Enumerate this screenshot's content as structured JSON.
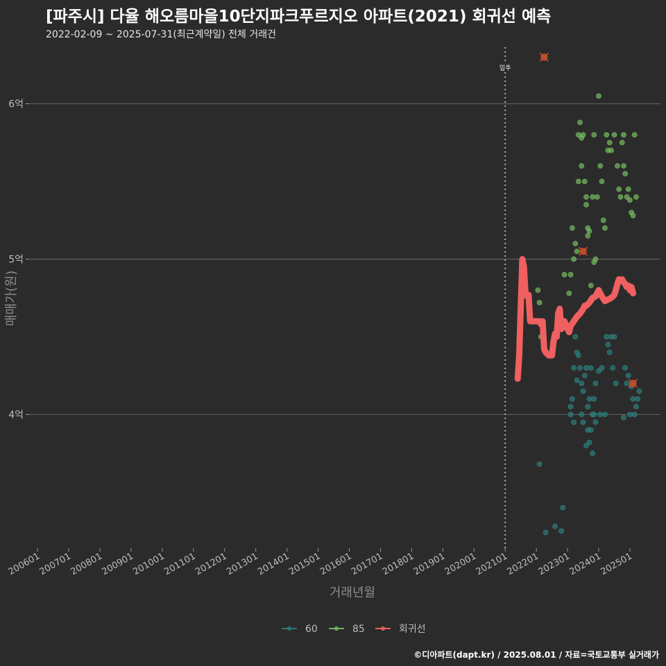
{
  "title": "[파주시] 다율 해오름마을10단지파크푸르지오 아파트(2021) 회귀선 예측",
  "subtitle": "2022-02-09 ~ 2025-07-31(최근계약일) 전체 거래건",
  "caption": "©디아파트(dapt.kr) / 2025.08.01 / 자료=국토교통부 실거래가",
  "colors": {
    "background": "#2b2b2b",
    "grid": "#5e5e5e",
    "series_60": "#2a7a78",
    "series_85": "#6fb45a",
    "regression": "#f06060",
    "highlight": "#d9472b"
  },
  "chart_data": {
    "type": "scatter",
    "xlabel": "거래년월",
    "ylabel": "매매가(원)",
    "x_unit": "decimal_year",
    "y_unit": "억",
    "xlim": [
      2005.73,
      2025.98
    ],
    "ylim": [
      3.14,
      6.4
    ],
    "x_tick_values": [
      2006,
      2007,
      2008,
      2009,
      2010,
      2011,
      2012,
      2013,
      2014,
      2015,
      2016,
      2017,
      2018,
      2019,
      2020,
      2021,
      2022,
      2023,
      2024,
      2025
    ],
    "x_tick_labels": [
      "200601",
      "200701",
      "200801",
      "200901",
      "201001",
      "201101",
      "201201",
      "201301",
      "201401",
      "201501",
      "201601",
      "201701",
      "201801",
      "201901",
      "202001",
      "202101",
      "202201",
      "202301",
      "202401",
      "202501"
    ],
    "y_tick_values": [
      4,
      5,
      6
    ],
    "y_tick_labels": [
      "4억",
      "5억",
      "6억"
    ],
    "move_in_marker": {
      "x": 2021.0,
      "label": "입주"
    },
    "legend": [
      "60",
      "85",
      "회귀선"
    ],
    "series": [
      {
        "name": "60",
        "points": [
          [
            2022.1,
            3.68
          ],
          [
            2022.3,
            3.24
          ],
          [
            2022.6,
            3.28
          ],
          [
            2022.8,
            3.25
          ],
          [
            2022.85,
            3.4
          ],
          [
            2023.1,
            4.0
          ],
          [
            2023.1,
            4.05
          ],
          [
            2023.15,
            4.1
          ],
          [
            2023.2,
            3.95
          ],
          [
            2023.2,
            4.3
          ],
          [
            2023.3,
            4.22
          ],
          [
            2023.3,
            4.4
          ],
          [
            2023.35,
            4.38
          ],
          [
            2023.4,
            4.3
          ],
          [
            2023.45,
            4.0
          ],
          [
            2023.45,
            4.2
          ],
          [
            2023.5,
            4.15
          ],
          [
            2023.55,
            4.25
          ],
          [
            2023.6,
            4.3
          ],
          [
            2023.6,
            3.8
          ],
          [
            2023.65,
            4.05
          ],
          [
            2023.65,
            3.9
          ],
          [
            2023.7,
            4.1
          ],
          [
            2023.7,
            3.82
          ],
          [
            2023.75,
            4.3
          ],
          [
            2023.75,
            3.9
          ],
          [
            2023.8,
            4.0
          ],
          [
            2023.8,
            3.75
          ],
          [
            2023.85,
            4.1
          ],
          [
            2023.85,
            4.0
          ],
          [
            2023.9,
            3.95
          ],
          [
            2023.9,
            4.2
          ],
          [
            2024.0,
            4.28
          ],
          [
            2024.05,
            4.0
          ],
          [
            2024.1,
            4.3
          ],
          [
            2024.2,
            4.0
          ],
          [
            2024.25,
            4.5
          ],
          [
            2024.3,
            4.45
          ],
          [
            2024.35,
            4.4
          ],
          [
            2024.4,
            4.5
          ],
          [
            2024.45,
            4.3
          ],
          [
            2024.5,
            4.5
          ],
          [
            2024.55,
            4.2
          ],
          [
            2024.8,
            3.98
          ],
          [
            2024.85,
            4.3
          ],
          [
            2024.9,
            4.2
          ],
          [
            2024.95,
            4.25
          ],
          [
            2025.0,
            4.0
          ],
          [
            2025.05,
            4.18
          ],
          [
            2025.1,
            4.1
          ],
          [
            2025.15,
            4.0
          ],
          [
            2025.2,
            4.05
          ],
          [
            2025.25,
            4.1
          ],
          [
            2025.3,
            4.15
          ],
          [
            2023.5,
            3.95
          ],
          [
            2023.25,
            4.5
          ]
        ]
      },
      {
        "name": "85",
        "points": [
          [
            2022.05,
            4.8
          ],
          [
            2022.1,
            4.72
          ],
          [
            2022.15,
            4.5
          ],
          [
            2022.9,
            4.9
          ],
          [
            2023.05,
            4.78
          ],
          [
            2023.1,
            4.9
          ],
          [
            2023.15,
            5.2
          ],
          [
            2023.2,
            5.0
          ],
          [
            2023.25,
            5.1
          ],
          [
            2023.3,
            5.05
          ],
          [
            2023.35,
            5.5
          ],
          [
            2023.35,
            5.8
          ],
          [
            2023.4,
            5.88
          ],
          [
            2023.45,
            5.78
          ],
          [
            2023.45,
            5.6
          ],
          [
            2023.5,
            5.8
          ],
          [
            2023.55,
            5.5
          ],
          [
            2023.6,
            5.35
          ],
          [
            2023.6,
            5.4
          ],
          [
            2023.65,
            5.15
          ],
          [
            2023.65,
            5.2
          ],
          [
            2023.7,
            5.18
          ],
          [
            2023.75,
            4.83
          ],
          [
            2023.8,
            5.4
          ],
          [
            2023.85,
            5.8
          ],
          [
            2023.85,
            4.98
          ],
          [
            2023.9,
            5.0
          ],
          [
            2023.95,
            5.4
          ],
          [
            2024.0,
            6.05
          ],
          [
            2024.05,
            5.6
          ],
          [
            2024.1,
            5.5
          ],
          [
            2024.15,
            5.25
          ],
          [
            2024.2,
            5.2
          ],
          [
            2024.25,
            5.8
          ],
          [
            2024.3,
            5.7
          ],
          [
            2024.35,
            5.75
          ],
          [
            2024.4,
            5.7
          ],
          [
            2024.5,
            5.8
          ],
          [
            2024.6,
            5.6
          ],
          [
            2024.65,
            5.45
          ],
          [
            2024.7,
            5.4
          ],
          [
            2024.75,
            5.75
          ],
          [
            2024.8,
            5.6
          ],
          [
            2024.8,
            5.8
          ],
          [
            2024.85,
            5.55
          ],
          [
            2024.9,
            5.4
          ],
          [
            2024.95,
            5.45
          ],
          [
            2025.0,
            5.38
          ],
          [
            2025.05,
            5.3
          ],
          [
            2025.1,
            5.28
          ],
          [
            2025.15,
            5.8
          ],
          [
            2025.2,
            5.4
          ]
        ]
      },
      {
        "name": "회귀선",
        "points": [
          [
            2021.4,
            4.23
          ],
          [
            2021.45,
            4.38
          ],
          [
            2021.5,
            4.7
          ],
          [
            2021.55,
            5.0
          ],
          [
            2021.6,
            4.95
          ],
          [
            2021.65,
            4.78
          ],
          [
            2021.7,
            4.76
          ],
          [
            2021.75,
            4.77
          ],
          [
            2021.8,
            4.6
          ],
          [
            2022.0,
            4.6
          ],
          [
            2022.1,
            4.6
          ],
          [
            2022.15,
            4.58
          ],
          [
            2022.2,
            4.6
          ],
          [
            2022.25,
            4.42
          ],
          [
            2022.3,
            4.4
          ],
          [
            2022.4,
            4.38
          ],
          [
            2022.5,
            4.38
          ],
          [
            2022.55,
            4.47
          ],
          [
            2022.6,
            4.52
          ],
          [
            2022.65,
            4.5
          ],
          [
            2022.7,
            4.65
          ],
          [
            2022.75,
            4.68
          ],
          [
            2022.8,
            4.55
          ],
          [
            2022.85,
            4.6
          ],
          [
            2022.9,
            4.6
          ],
          [
            2023.0,
            4.55
          ],
          [
            2023.05,
            4.53
          ],
          [
            2023.1,
            4.57
          ],
          [
            2023.2,
            4.6
          ],
          [
            2023.3,
            4.63
          ],
          [
            2023.4,
            4.65
          ],
          [
            2023.5,
            4.68
          ],
          [
            2023.55,
            4.7
          ],
          [
            2023.6,
            4.7
          ],
          [
            2023.7,
            4.72
          ],
          [
            2023.8,
            4.75
          ],
          [
            2023.9,
            4.76
          ],
          [
            2024.0,
            4.8
          ],
          [
            2024.1,
            4.76
          ],
          [
            2024.2,
            4.73
          ],
          [
            2024.3,
            4.74
          ],
          [
            2024.4,
            4.75
          ],
          [
            2024.5,
            4.77
          ],
          [
            2024.55,
            4.8
          ],
          [
            2024.6,
            4.84
          ],
          [
            2024.65,
            4.87
          ],
          [
            2024.7,
            4.86
          ],
          [
            2024.75,
            4.87
          ],
          [
            2024.8,
            4.85
          ],
          [
            2024.85,
            4.84
          ],
          [
            2024.9,
            4.82
          ],
          [
            2024.95,
            4.83
          ],
          [
            2025.0,
            4.8
          ],
          [
            2025.05,
            4.82
          ],
          [
            2025.1,
            4.78
          ]
        ]
      }
    ],
    "highlighted_points": [
      {
        "x": 2022.25,
        "y": 6.3
      },
      {
        "x": 2023.5,
        "y": 5.05
      },
      {
        "x": 2025.1,
        "y": 4.2
      }
    ]
  }
}
